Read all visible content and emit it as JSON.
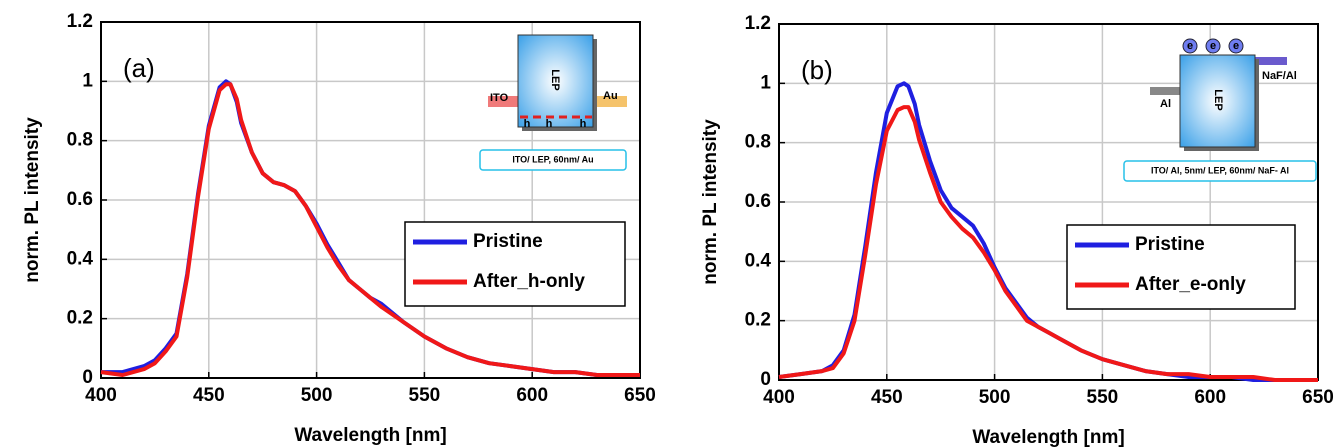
{
  "chart_data": [
    {
      "type": "line",
      "panel_label": "(a)",
      "xlabel": "Wavelength [nm]",
      "ylabel": "norm. PL intensity",
      "xlim": [
        400,
        650
      ],
      "xticks": [
        400,
        450,
        500,
        550,
        600,
        650
      ],
      "ylim": [
        0,
        1.2
      ],
      "yticks": [
        0,
        0.2,
        0.4,
        0.6,
        0.8,
        1,
        1.2
      ],
      "grid": true,
      "legend": "right",
      "x": [
        400,
        410,
        420,
        425,
        430,
        435,
        440,
        445,
        450,
        455,
        458,
        460,
        463,
        465,
        470,
        475,
        480,
        485,
        490,
        495,
        500,
        505,
        510,
        515,
        520,
        525,
        530,
        540,
        550,
        560,
        570,
        580,
        590,
        600,
        610,
        620,
        630,
        640,
        650
      ],
      "series": [
        {
          "name": "Pristine",
          "color": "#1f1fe0",
          "values": [
            0.02,
            0.02,
            0.04,
            0.06,
            0.1,
            0.15,
            0.35,
            0.62,
            0.85,
            0.98,
            1.0,
            0.99,
            0.93,
            0.86,
            0.76,
            0.69,
            0.66,
            0.65,
            0.63,
            0.58,
            0.52,
            0.45,
            0.39,
            0.33,
            0.3,
            0.27,
            0.25,
            0.19,
            0.14,
            0.1,
            0.07,
            0.05,
            0.04,
            0.03,
            0.02,
            0.02,
            0.01,
            0.01,
            0.01
          ]
        },
        {
          "name": "After_h-only",
          "color": "#f01818",
          "values": [
            0.02,
            0.01,
            0.03,
            0.05,
            0.09,
            0.14,
            0.34,
            0.61,
            0.84,
            0.97,
            0.99,
            0.99,
            0.94,
            0.87,
            0.76,
            0.69,
            0.66,
            0.65,
            0.63,
            0.58,
            0.51,
            0.44,
            0.38,
            0.33,
            0.3,
            0.27,
            0.24,
            0.19,
            0.14,
            0.1,
            0.07,
            0.05,
            0.04,
            0.03,
            0.02,
            0.02,
            0.01,
            0.01,
            0.01
          ]
        }
      ],
      "inset": {
        "ito": "ITO",
        "metal": "Au",
        "layer": "LEP",
        "carriers": [
          "h",
          "h",
          "h"
        ],
        "device": "ITO/ LEP, 60nm/ Au"
      }
    },
    {
      "type": "line",
      "panel_label": "(b)",
      "xlabel": "Wavelength [nm]",
      "ylabel": "norm. PL intensity",
      "xlim": [
        400,
        650
      ],
      "xticks": [
        400,
        450,
        500,
        550,
        600,
        650
      ],
      "ylim": [
        0,
        1.2
      ],
      "yticks": [
        0,
        0.2,
        0.4,
        0.6,
        0.8,
        1,
        1.2
      ],
      "grid": true,
      "legend": "right",
      "x": [
        400,
        410,
        420,
        425,
        430,
        435,
        440,
        445,
        450,
        455,
        458,
        460,
        463,
        465,
        470,
        475,
        480,
        485,
        490,
        495,
        500,
        505,
        510,
        515,
        520,
        525,
        530,
        540,
        550,
        560,
        570,
        580,
        590,
        600,
        610,
        620,
        630,
        640,
        650
      ],
      "series": [
        {
          "name": "Pristine",
          "color": "#1f1fe0",
          "values": [
            0.01,
            0.02,
            0.03,
            0.05,
            0.1,
            0.22,
            0.45,
            0.7,
            0.9,
            0.99,
            1.0,
            0.99,
            0.93,
            0.86,
            0.74,
            0.64,
            0.58,
            0.55,
            0.52,
            0.46,
            0.38,
            0.31,
            0.26,
            0.21,
            0.18,
            0.16,
            0.14,
            0.1,
            0.07,
            0.05,
            0.03,
            0.02,
            0.01,
            0.01,
            0.01,
            0.0,
            0.0,
            0.0,
            0.0
          ]
        },
        {
          "name": "After_e-only",
          "color": "#f01818",
          "values": [
            0.01,
            0.02,
            0.03,
            0.04,
            0.09,
            0.2,
            0.42,
            0.66,
            0.84,
            0.91,
            0.92,
            0.92,
            0.87,
            0.81,
            0.7,
            0.6,
            0.55,
            0.51,
            0.48,
            0.43,
            0.37,
            0.3,
            0.25,
            0.2,
            0.18,
            0.16,
            0.14,
            0.1,
            0.07,
            0.05,
            0.03,
            0.02,
            0.02,
            0.01,
            0.01,
            0.01,
            0.0,
            0.0,
            0.0
          ]
        }
      ],
      "inset": {
        "metal": "Al",
        "top": "NaF/Al",
        "layer": "LEP",
        "carriers": [
          "e",
          "e",
          "e"
        ],
        "device": "ITO/ Al, 5nm/ LEP, 60nm/ NaF- Al"
      }
    }
  ]
}
